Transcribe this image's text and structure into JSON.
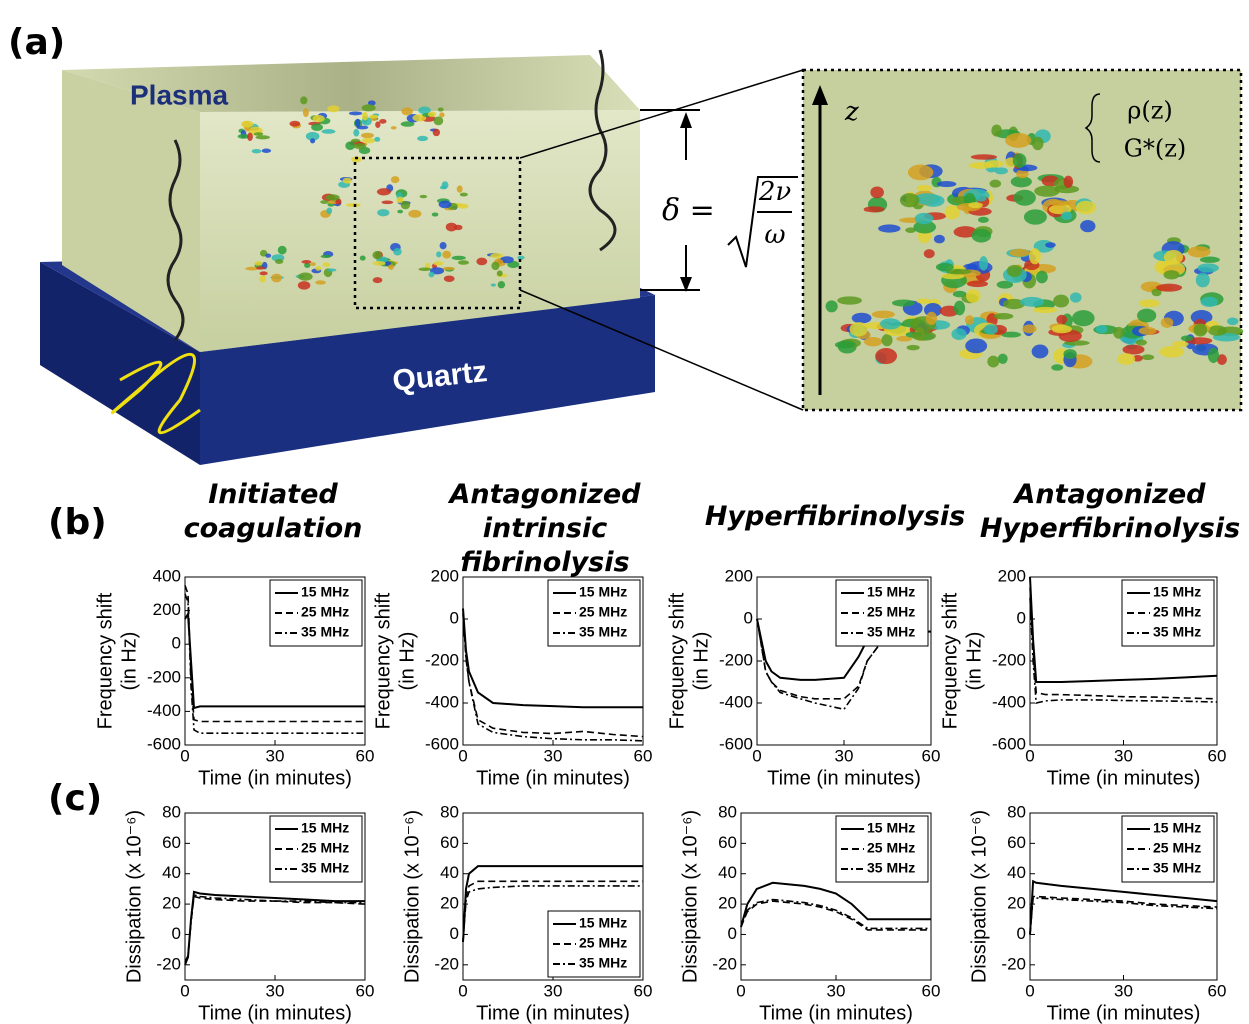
{
  "panel_labels": [
    "(a)",
    "(b)",
    "(c)"
  ],
  "diagram": {
    "plasma": "Plasma",
    "quartz": "Quartz",
    "delta": "δ =",
    "numerator": "2ν",
    "denominator": "ω",
    "z": "z",
    "rho": "ρ(z)",
    "g": "G*(z)"
  },
  "chart_data": [
    {
      "type": "line",
      "title": "Initiated coagulation",
      "xlabel": "Time (in minutes)",
      "ylabel": [
        "Frequency shift",
        "(in Hz)"
      ],
      "x": [
        0,
        1,
        2,
        3,
        5,
        10,
        20,
        30,
        40,
        50,
        60
      ],
      "xlim": [
        0,
        60
      ],
      "xticks": [
        0,
        30,
        60
      ],
      "ylim": [
        -600,
        400
      ],
      "yticks": [
        -600,
        -400,
        -200,
        0,
        200,
        400
      ],
      "legend": "upper right",
      "series": [
        {
          "name": "15 MHz",
          "color": "#000000",
          "style": "solid",
          "values": [
            150,
            180,
            -100,
            -380,
            -370,
            -370,
            -370,
            -370,
            -370,
            -370,
            -370
          ]
        },
        {
          "name": "25 MHz",
          "color": "#000000",
          "style": "dashed",
          "values": [
            350,
            300,
            -200,
            -450,
            -460,
            -460,
            -460,
            -460,
            -460,
            -460,
            -460
          ]
        },
        {
          "name": "35 MHz",
          "color": "#000000",
          "style": "dashdot",
          "values": [
            300,
            250,
            -250,
            -510,
            -530,
            -530,
            -530,
            -530,
            -530,
            -530,
            -530
          ]
        }
      ]
    },
    {
      "type": "line",
      "title": "Antagonized intrinsic fibrinolysis",
      "xlabel": "Time (in minutes)",
      "ylabel": [
        "Frequency shift",
        "(in Hz)"
      ],
      "x": [
        0,
        1,
        2,
        5,
        10,
        20,
        30,
        40,
        50,
        60
      ],
      "xlim": [
        0,
        60
      ],
      "xticks": [
        0,
        30,
        60
      ],
      "ylim": [
        -600,
        200
      ],
      "yticks": [
        -600,
        -400,
        -200,
        0,
        200
      ],
      "legend": "upper right",
      "series": [
        {
          "name": "15 MHz",
          "color": "#000000",
          "style": "solid",
          "values": [
            50,
            -150,
            -250,
            -350,
            -400,
            -410,
            -415,
            -420,
            -420,
            -420
          ]
        },
        {
          "name": "25 MHz",
          "color": "#000000",
          "style": "dashed",
          "values": [
            30,
            -180,
            -300,
            -480,
            -520,
            -540,
            -545,
            -535,
            -550,
            -560
          ]
        },
        {
          "name": "35 MHz",
          "color": "#000000",
          "style": "dashdot",
          "values": [
            20,
            -190,
            -300,
            -500,
            -540,
            -560,
            -570,
            -575,
            -575,
            -580
          ]
        }
      ]
    },
    {
      "type": "line",
      "title": "Hyperfibrinolysis",
      "xlabel": "Time (in minutes)",
      "ylabel": [
        "Frequency shift",
        "(in Hz)"
      ],
      "x": [
        0,
        3,
        5,
        8,
        15,
        20,
        30,
        35,
        38,
        45,
        50,
        60
      ],
      "xlim": [
        0,
        60
      ],
      "xticks": [
        0,
        30,
        60
      ],
      "ylim": [
        -600,
        200
      ],
      "yticks": [
        -600,
        -400,
        -200,
        0,
        200
      ],
      "legend": "upper right",
      "series": [
        {
          "name": "15 MHz",
          "color": "#000000",
          "style": "solid",
          "values": [
            0,
            -200,
            -250,
            -280,
            -290,
            -290,
            -280,
            -180,
            -100,
            -60,
            -60,
            -60
          ]
        },
        {
          "name": "25 MHz",
          "color": "#000000",
          "style": "dashed",
          "values": [
            0,
            -250,
            -300,
            -340,
            -370,
            -380,
            -380,
            -320,
            -200,
            -70,
            -60,
            -60
          ]
        },
        {
          "name": "35 MHz",
          "color": "#000000",
          "style": "dashdot",
          "values": [
            0,
            -250,
            -300,
            -350,
            -380,
            -400,
            -430,
            -330,
            -200,
            -70,
            -60,
            -60
          ]
        }
      ]
    },
    {
      "type": "line",
      "title": "Antagonized Hyperfibrinolysis",
      "xlabel": "Time (in minutes)",
      "ylabel": [
        "Frequency shift",
        "(in Hz)"
      ],
      "x": [
        0,
        1,
        2,
        5,
        10,
        20,
        30,
        40,
        50,
        60
      ],
      "xlim": [
        0,
        60
      ],
      "xticks": [
        0,
        30,
        60
      ],
      "ylim": [
        -600,
        200
      ],
      "yticks": [
        -600,
        -400,
        -200,
        0,
        200
      ],
      "legend": "upper right",
      "series": [
        {
          "name": "15 MHz",
          "color": "#000000",
          "style": "solid",
          "values": [
            200,
            -100,
            -300,
            -300,
            -300,
            -295,
            -290,
            -285,
            -278,
            -270
          ]
        },
        {
          "name": "25 MHz",
          "color": "#000000",
          "style": "dashed",
          "values": [
            150,
            -150,
            -350,
            -360,
            -360,
            -365,
            -370,
            -372,
            -376,
            -380
          ]
        },
        {
          "name": "35 MHz",
          "color": "#000000",
          "style": "dashdot",
          "values": [
            100,
            -200,
            -400,
            -390,
            -385,
            -385,
            -388,
            -390,
            -392,
            -395
          ]
        }
      ]
    },
    {
      "type": "line",
      "xlabel": "Time (in minutes)",
      "ylabel": [
        "Dissipation (x 10⁻⁶)"
      ],
      "x": [
        0,
        1,
        2,
        3,
        5,
        10,
        20,
        30,
        40,
        50,
        60
      ],
      "xlim": [
        0,
        60
      ],
      "xticks": [
        0,
        30,
        60
      ],
      "ylim": [
        -30,
        80
      ],
      "yticks": [
        -20,
        0,
        20,
        40,
        60,
        80
      ],
      "legend": "upper right",
      "series": [
        {
          "name": "15 MHz",
          "color": "#000000",
          "style": "solid",
          "values": [
            -20,
            -15,
            10,
            28,
            27,
            26,
            25,
            24,
            23,
            22,
            22
          ]
        },
        {
          "name": "25 MHz",
          "color": "#000000",
          "style": "dashed",
          "values": [
            -18,
            -14,
            8,
            25,
            24,
            23,
            22,
            22,
            21,
            21,
            20
          ]
        },
        {
          "name": "35 MHz",
          "color": "#000000",
          "style": "dashdot",
          "values": [
            -19,
            -15,
            8,
            26,
            25,
            24,
            23,
            22,
            22,
            21,
            21
          ]
        }
      ]
    },
    {
      "type": "line",
      "xlabel": "Time (in minutes)",
      "ylabel": [
        "Dissipation (x 10⁻⁶)"
      ],
      "x": [
        0,
        1,
        2,
        5,
        10,
        20,
        30,
        40,
        50,
        60
      ],
      "xlim": [
        0,
        60
      ],
      "xticks": [
        0,
        30,
        60
      ],
      "ylim": [
        -30,
        80
      ],
      "yticks": [
        -20,
        0,
        20,
        40,
        60,
        80
      ],
      "legend": "lower right",
      "series": [
        {
          "name": "15 MHz",
          "color": "#000000",
          "style": "solid",
          "values": [
            -5,
            30,
            40,
            45,
            45,
            45,
            45,
            45,
            45,
            45
          ]
        },
        {
          "name": "25 MHz",
          "color": "#000000",
          "style": "dashed",
          "values": [
            -5,
            25,
            32,
            35,
            35,
            35,
            35,
            35,
            35,
            35
          ]
        },
        {
          "name": "35 MHz",
          "color": "#000000",
          "style": "dashdot",
          "values": [
            -5,
            22,
            28,
            30,
            31,
            32,
            32,
            32,
            32,
            32
          ]
        }
      ]
    },
    {
      "type": "line",
      "xlabel": "Time (in minutes)",
      "ylabel": [
        "Dissipation (x 10⁻⁶)"
      ],
      "x": [
        0,
        2,
        5,
        10,
        20,
        25,
        30,
        35,
        40,
        50,
        60
      ],
      "xlim": [
        0,
        60
      ],
      "xticks": [
        0,
        30,
        60
      ],
      "ylim": [
        -30,
        80
      ],
      "yticks": [
        -20,
        0,
        20,
        40,
        60,
        80
      ],
      "legend": "upper right",
      "series": [
        {
          "name": "15 MHz",
          "color": "#000000",
          "style": "solid",
          "values": [
            5,
            20,
            30,
            34,
            32,
            30,
            27,
            20,
            10,
            10,
            10
          ]
        },
        {
          "name": "25 MHz",
          "color": "#000000",
          "style": "dashed",
          "values": [
            5,
            15,
            20,
            22,
            20,
            18,
            15,
            10,
            3,
            3,
            3
          ]
        },
        {
          "name": "35 MHz",
          "color": "#000000",
          "style": "dashdot",
          "values": [
            5,
            16,
            21,
            23,
            21,
            19,
            16,
            11,
            4,
            4,
            4
          ]
        }
      ]
    },
    {
      "type": "line",
      "xlabel": "Time (in minutes)",
      "ylabel": [
        "Dissipation (x 10⁻⁶)"
      ],
      "x": [
        0,
        1,
        2,
        10,
        20,
        30,
        40,
        50,
        60
      ],
      "xlim": [
        0,
        60
      ],
      "xticks": [
        0,
        30,
        60
      ],
      "ylim": [
        -30,
        80
      ],
      "yticks": [
        -20,
        0,
        20,
        40,
        60,
        80
      ],
      "legend": "upper right",
      "series": [
        {
          "name": "15 MHz",
          "color": "#000000",
          "style": "solid",
          "values": [
            0,
            35,
            34,
            32,
            30,
            28,
            26,
            24,
            22
          ]
        },
        {
          "name": "25 MHz",
          "color": "#000000",
          "style": "dashed",
          "values": [
            0,
            25,
            25,
            24,
            23,
            22,
            20,
            19,
            18
          ]
        },
        {
          "name": "35 MHz",
          "color": "#000000",
          "style": "dashdot",
          "values": [
            0,
            24,
            24,
            23,
            22,
            21,
            19,
            18,
            17
          ]
        }
      ]
    }
  ]
}
